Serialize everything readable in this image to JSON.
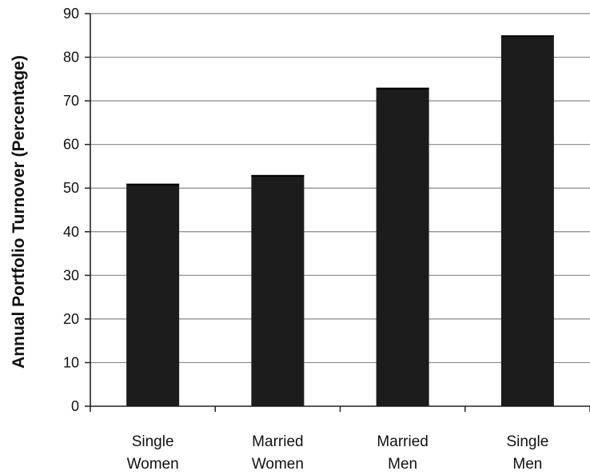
{
  "chart_data": {
    "type": "bar",
    "title": "",
    "xlabel": "",
    "ylabel": "Annual Portfolio Turnover (Percentage)",
    "categories": [
      [
        "Single",
        "Women"
      ],
      [
        "Married",
        "Women"
      ],
      [
        "Married",
        "Men"
      ],
      [
        "Single",
        "Men"
      ]
    ],
    "values": [
      51,
      53,
      73,
      85
    ],
    "ylim": [
      0,
      90
    ],
    "yticks": [
      0,
      10,
      20,
      30,
      40,
      50,
      60,
      70,
      80,
      90
    ],
    "grid": true,
    "legend": "none",
    "colors": {
      "bar": "#1c1c1c",
      "grid": "#888888",
      "axis": "#222222"
    }
  }
}
